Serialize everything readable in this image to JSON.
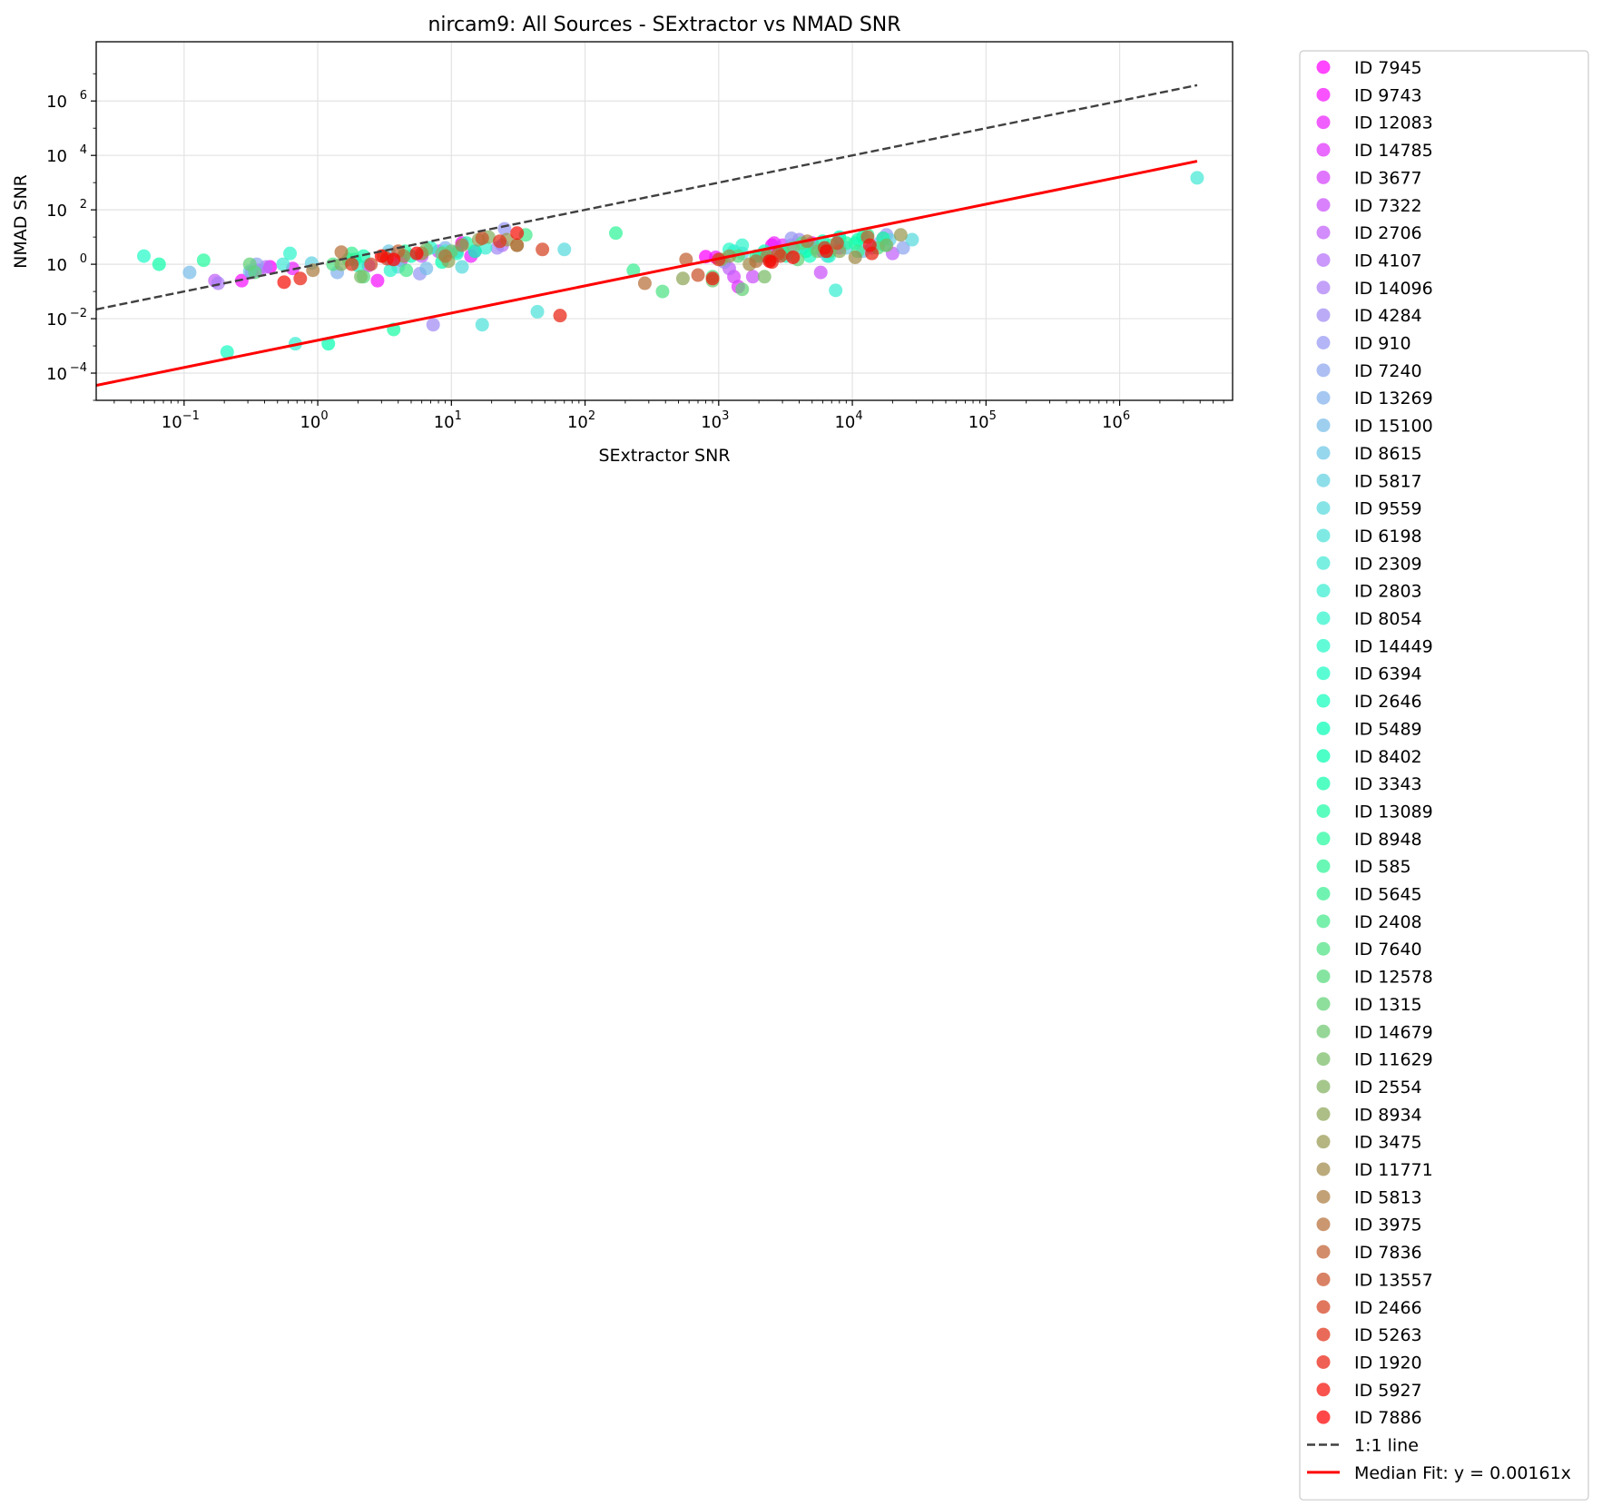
{
  "chart_data": {
    "type": "scatter",
    "title": "nircam9: All Sources - SExtractor vs NMAD SNR",
    "xlabel": "SExtractor SNR",
    "ylabel": "NMAD SNR",
    "xscale": "log",
    "yscale": "log",
    "xlim": [
      0.022,
      7000000
    ],
    "ylim": [
      1e-05,
      150000000
    ],
    "xticks": [
      {
        "value": 0.1,
        "base": "10",
        "exp": "−1"
      },
      {
        "value": 1,
        "base": "10",
        "exp": "0"
      },
      {
        "value": 10,
        "base": "10",
        "exp": "1"
      },
      {
        "value": 100,
        "base": "10",
        "exp": "2"
      },
      {
        "value": 1000,
        "base": "10",
        "exp": "3"
      },
      {
        "value": 10000,
        "base": "10",
        "exp": "4"
      },
      {
        "value": 100000,
        "base": "10",
        "exp": "5"
      },
      {
        "value": 1000000,
        "base": "10",
        "exp": "6"
      }
    ],
    "yticks": [
      {
        "value": 0.0001,
        "base": "10",
        "exp": "−4"
      },
      {
        "value": 0.01,
        "base": "10",
        "exp": "−2"
      },
      {
        "value": 1,
        "base": "10",
        "exp": "0"
      },
      {
        "value": 100,
        "base": "10",
        "exp": "2"
      },
      {
        "value": 10000,
        "base": "10",
        "exp": "4"
      },
      {
        "value": 1000000,
        "base": "10",
        "exp": "6"
      }
    ],
    "grid": true,
    "legend_position": "outside-right",
    "colormap": "rainbow",
    "series": [
      {
        "name": "ID 7945",
        "points": [
          [
            0.44,
            0.8
          ],
          [
            12,
            6
          ],
          [
            800,
            1.9
          ],
          [
            2500,
            5
          ]
        ]
      },
      {
        "name": "ID 9743",
        "points": [
          [
            0.27,
            0.25
          ],
          [
            2.8,
            0.25
          ],
          [
            950,
            1.8
          ],
          [
            5000,
            6
          ]
        ]
      },
      {
        "name": "ID 12083",
        "points": [
          [
            0.65,
            0.7
          ],
          [
            14,
            2
          ],
          [
            2600,
            6
          ],
          [
            6000,
            3
          ]
        ]
      },
      {
        "name": "ID 14785",
        "points": [
          [
            0.32,
            0.5
          ],
          [
            4.2,
            1.4
          ],
          [
            1400,
            0.15
          ],
          [
            3000,
            5
          ]
        ]
      },
      {
        "name": "ID 3677",
        "points": [
          [
            2.4,
            0.9
          ],
          [
            15,
            3
          ],
          [
            1300,
            0.35
          ],
          [
            8000,
            4
          ]
        ]
      },
      {
        "name": "ID 7322",
        "points": [
          [
            0.36,
            0.6
          ],
          [
            8,
            3
          ],
          [
            5800,
            0.5
          ],
          [
            1800,
            0.35
          ]
        ]
      },
      {
        "name": "ID 2706",
        "points": [
          [
            0.17,
            0.25
          ],
          [
            6,
            2
          ],
          [
            1200,
            0.7
          ],
          [
            20000,
            2.5
          ]
        ]
      },
      {
        "name": "ID 4107",
        "points": [
          [
            0.41,
            0.8
          ],
          [
            24,
            5
          ],
          [
            2400,
            1.6
          ],
          [
            17000,
            9
          ]
        ]
      },
      {
        "name": "ID 14096",
        "points": [
          [
            0.18,
            0.2
          ],
          [
            3.5,
            1.5
          ],
          [
            3500,
            5
          ],
          [
            14000,
            4
          ]
        ]
      },
      {
        "name": "ID 4284",
        "points": [
          [
            7.3,
            0.006
          ],
          [
            22,
            4
          ],
          [
            4000,
            8
          ],
          [
            1100,
            1.2
          ]
        ]
      },
      {
        "name": "ID 910",
        "points": [
          [
            5.8,
            0.45
          ],
          [
            25,
            20
          ],
          [
            3500,
            9
          ],
          [
            18000,
            12
          ]
        ]
      },
      {
        "name": "ID 7240",
        "points": [
          [
            0.35,
            1.0
          ],
          [
            11,
            3
          ],
          [
            3000,
            3
          ],
          [
            24000,
            4
          ]
        ]
      },
      {
        "name": "ID 13269",
        "points": [
          [
            1.4,
            0.5
          ],
          [
            9,
            4
          ],
          [
            2100,
            2
          ],
          [
            16000,
            6
          ]
        ]
      },
      {
        "name": "ID 15100",
        "points": [
          [
            0.11,
            0.5
          ],
          [
            6.5,
            0.7
          ],
          [
            4200,
            4
          ],
          [
            12000,
            3
          ]
        ]
      },
      {
        "name": "ID 8615",
        "points": [
          [
            0.31,
            0.55
          ],
          [
            3.4,
            3
          ],
          [
            2700,
            2
          ],
          [
            9000,
            4
          ]
        ]
      },
      {
        "name": "ID 5817",
        "points": [
          [
            0.9,
            1.1
          ],
          [
            4,
            0.8
          ],
          [
            1500,
            2.5
          ],
          [
            19000,
            8
          ]
        ]
      },
      {
        "name": "ID 9559",
        "points": [
          [
            12,
            0.8
          ],
          [
            70,
            3.5
          ],
          [
            6500,
            2
          ],
          [
            28000,
            8
          ]
        ]
      },
      {
        "name": "ID 6198",
        "points": [
          [
            17,
            0.006
          ],
          [
            44,
            0.018
          ],
          [
            1300,
            3
          ],
          [
            8000,
            9
          ]
        ]
      },
      {
        "name": "ID 2309",
        "points": [
          [
            0.55,
            1.0
          ],
          [
            9,
            3
          ],
          [
            3800000,
            1500
          ],
          [
            6200,
            4
          ]
        ]
      },
      {
        "name": "ID 2803",
        "points": [
          [
            0.68,
            0.0012
          ],
          [
            18,
            4
          ],
          [
            7500,
            0.11
          ],
          [
            2000,
            2
          ]
        ]
      },
      {
        "name": "ID 8054",
        "points": [
          [
            0.62,
            2.5
          ],
          [
            3.5,
            0.6
          ],
          [
            1500,
            5
          ],
          [
            6700,
            2
          ]
        ]
      },
      {
        "name": "ID 14449",
        "points": [
          [
            0.05,
            2
          ],
          [
            7,
            4
          ],
          [
            1200,
            3.5
          ],
          [
            17500,
            5
          ]
        ]
      },
      {
        "name": "ID 6394",
        "points": [
          [
            0.21,
            0.0006
          ],
          [
            2,
            0.9
          ],
          [
            4800,
            2
          ],
          [
            10500,
            6
          ]
        ]
      },
      {
        "name": "ID 2646",
        "points": [
          [
            1.9,
            1.5
          ],
          [
            11,
            2.5
          ],
          [
            8000,
            10
          ],
          [
            3200,
            2
          ]
        ]
      },
      {
        "name": "ID 5489",
        "points": [
          [
            5,
            2
          ],
          [
            15,
            3
          ],
          [
            6000,
            7
          ],
          [
            2200,
            3
          ]
        ]
      },
      {
        "name": "ID 8402",
        "points": [
          [
            1.2,
            0.0012
          ],
          [
            8.5,
            1.2
          ],
          [
            4500,
            3
          ],
          [
            12000,
            10
          ]
        ]
      },
      {
        "name": "ID 3343",
        "points": [
          [
            0.065,
            1.0
          ],
          [
            2.2,
            2
          ],
          [
            11000,
            8
          ],
          [
            3000,
            3
          ]
        ]
      },
      {
        "name": "ID 13089",
        "points": [
          [
            3.7,
            0.004
          ],
          [
            13,
            6
          ],
          [
            7000,
            5
          ],
          [
            17000,
            9
          ]
        ]
      },
      {
        "name": "ID 8948",
        "points": [
          [
            0.14,
            1.4
          ],
          [
            4.5,
            3
          ],
          [
            1900,
            2
          ],
          [
            9000,
            6
          ]
        ]
      },
      {
        "name": "ID 585",
        "points": [
          [
            170,
            14
          ],
          [
            1.7,
            1.5
          ],
          [
            5200,
            4
          ],
          [
            13000,
            12
          ]
        ]
      },
      {
        "name": "ID 5645",
        "points": [
          [
            230,
            0.6
          ],
          [
            1.8,
            2.5
          ],
          [
            3100,
            2.5
          ],
          [
            11000,
            3
          ]
        ]
      },
      {
        "name": "ID 2408",
        "points": [
          [
            36,
            12
          ],
          [
            4.6,
            0.6
          ],
          [
            2400,
            1.5
          ],
          [
            6800,
            3
          ]
        ]
      },
      {
        "name": "ID 7640",
        "points": [
          [
            380,
            0.1
          ],
          [
            1.3,
            1.0
          ],
          [
            900,
            0.35
          ],
          [
            4200,
            6
          ]
        ]
      },
      {
        "name": "ID 12578",
        "points": [
          [
            2.2,
            0.35
          ],
          [
            0.34,
            0.5
          ],
          [
            1400,
            2
          ],
          [
            15500,
            4
          ]
        ]
      },
      {
        "name": "ID 1315",
        "points": [
          [
            0.31,
            1.0
          ],
          [
            8.5,
            2.5
          ],
          [
            1500,
            0.12
          ],
          [
            3900,
            1.5
          ]
        ]
      },
      {
        "name": "ID 14679",
        "points": [
          [
            31,
            5
          ],
          [
            10,
            3
          ],
          [
            900,
            0.25
          ],
          [
            3600,
            4
          ]
        ]
      },
      {
        "name": "ID 11629",
        "points": [
          [
            2.1,
            0.35
          ],
          [
            6.5,
            3.5
          ],
          [
            2200,
            0.35
          ],
          [
            5500,
            3
          ]
        ]
      },
      {
        "name": "ID 2554",
        "points": [
          [
            1.5,
            1.0
          ],
          [
            19,
            10
          ],
          [
            1050,
            1.5
          ],
          [
            18000,
            5
          ]
        ]
      },
      {
        "name": "ID 8934",
        "points": [
          [
            9.5,
            1.3
          ],
          [
            16,
            8
          ],
          [
            540,
            0.3
          ],
          [
            8000,
            3
          ]
        ]
      },
      {
        "name": "ID 3475",
        "points": [
          [
            3.1,
            2
          ],
          [
            26,
            8
          ],
          [
            1200,
            2
          ],
          [
            23000,
            12
          ]
        ]
      },
      {
        "name": "ID 11771",
        "points": [
          [
            4.4,
            2
          ],
          [
            6,
            2.5
          ],
          [
            1700,
            1
          ],
          [
            10500,
            1.8
          ]
        ]
      },
      {
        "name": "ID 5813",
        "points": [
          [
            0.92,
            0.6
          ],
          [
            12,
            5
          ],
          [
            2300,
            2
          ],
          [
            4600,
            7
          ]
        ]
      },
      {
        "name": "ID 3975",
        "points": [
          [
            1.5,
            2.8
          ],
          [
            9,
            2
          ],
          [
            280,
            0.2
          ],
          [
            1900,
            1.3
          ]
        ]
      },
      {
        "name": "ID 7836",
        "points": [
          [
            4,
            3
          ],
          [
            31,
            5
          ],
          [
            570,
            1.5
          ],
          [
            13000,
            10
          ]
        ]
      },
      {
        "name": "ID 13557",
        "points": [
          [
            2.5,
            1.0
          ],
          [
            17,
            9
          ],
          [
            700,
            0.4
          ],
          [
            2800,
            2.5
          ]
        ]
      },
      {
        "name": "ID 2466",
        "points": [
          [
            3.3,
            1.6
          ],
          [
            48,
            3.5
          ],
          [
            2900,
            2
          ],
          [
            7700,
            6
          ]
        ]
      },
      {
        "name": "ID 5263",
        "points": [
          [
            1.8,
            1.0
          ],
          [
            23,
            7
          ],
          [
            1000,
            1.5
          ],
          [
            6200,
            4
          ]
        ]
      },
      {
        "name": "ID 1920",
        "points": [
          [
            0.74,
            0.3
          ],
          [
            65,
            0.013
          ],
          [
            2500,
            1.2
          ],
          [
            14000,
            2.5
          ]
        ]
      },
      {
        "name": "ID 5927",
        "points": [
          [
            0.56,
            0.22
          ],
          [
            31,
            14
          ],
          [
            900,
            0.3
          ],
          [
            13500,
            5
          ]
        ]
      },
      {
        "name": "ID 7886",
        "points": [
          [
            3,
            2
          ],
          [
            3.7,
            1.5
          ],
          [
            5.5,
            2.5
          ],
          [
            2400,
            1.3
          ],
          [
            3600,
            1.8
          ],
          [
            6400,
            3
          ]
        ]
      }
    ],
    "lines": [
      {
        "name": "1:1 line",
        "style": "dashed",
        "color": "#404040",
        "slope": 1,
        "x_range": [
          0.022,
          3800000
        ]
      },
      {
        "name": "Median Fit: y = 0.00161x",
        "style": "solid",
        "color": "#ff0000",
        "slope": 0.00161,
        "x_range": [
          0.022,
          3800000
        ]
      }
    ]
  }
}
